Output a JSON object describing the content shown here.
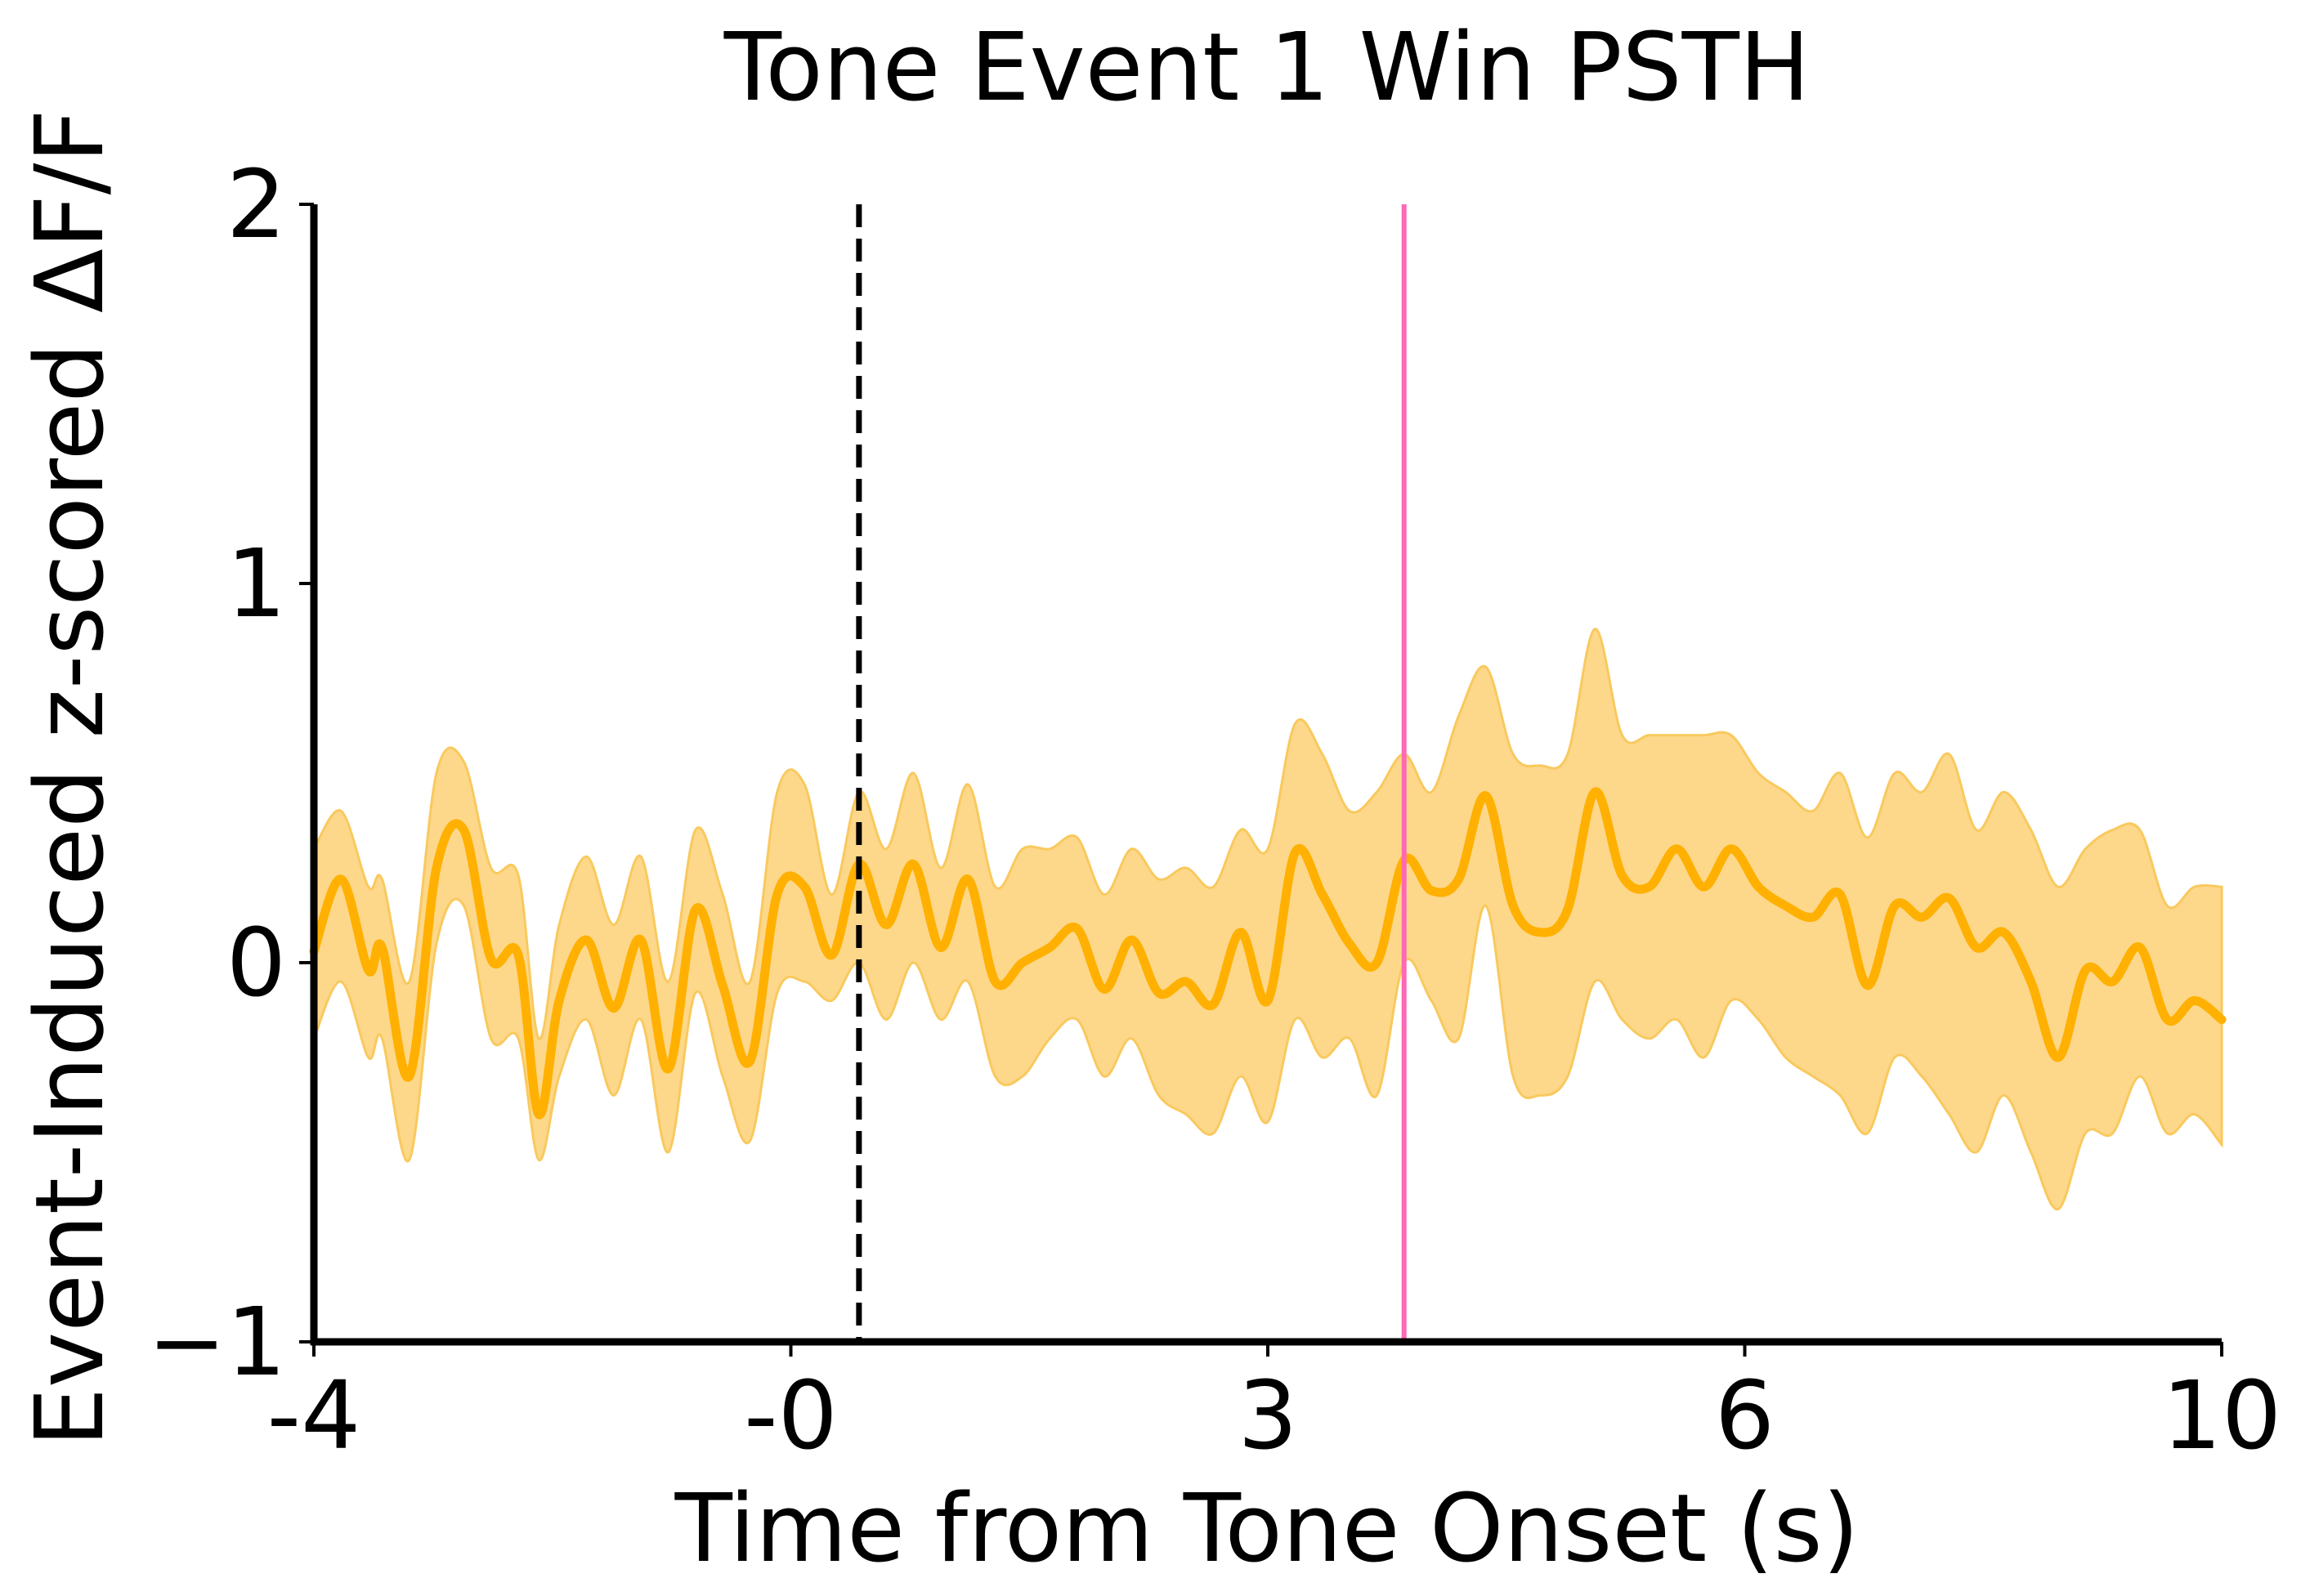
{
  "chart_data": {
    "type": "line",
    "title": "Tone Event 1 Win PSTH",
    "xlabel": "Time from Tone Onset (s)",
    "ylabel": "Event-Induced z-scored ΔF/F",
    "xlim": [
      -4,
      10
    ],
    "ylim": [
      -1,
      2
    ],
    "x_ticks": [
      {
        "value": -4,
        "label": "-4"
      },
      {
        "value": -0.5,
        "label": "-0"
      },
      {
        "value": 3,
        "label": "3"
      },
      {
        "value": 6.5,
        "label": "6"
      },
      {
        "value": 10,
        "label": "10"
      }
    ],
    "y_ticks": [
      {
        "value": -1,
        "label": "−1"
      },
      {
        "value": 0,
        "label": "0"
      },
      {
        "value": 1,
        "label": "1"
      },
      {
        "value": 2,
        "label": "2"
      }
    ],
    "grid": false,
    "vlines": [
      {
        "x": 0,
        "style": "dashed",
        "color": "#000000"
      },
      {
        "x": 4,
        "style": "solid",
        "color": "#ff69b4"
      }
    ],
    "colors": {
      "mean_line": "#ffb000",
      "sem_band": "#fdd88b",
      "sem_band_edge": "#f9c95e",
      "axis": "#000000"
    },
    "series": [
      {
        "x": [
          -4.0,
          -3.8,
          -3.6,
          -3.5,
          -3.3,
          -3.1,
          -2.9,
          -2.7,
          -2.5,
          -2.35,
          -2.2,
          -2.0,
          -1.8,
          -1.6,
          -1.4,
          -1.2,
          -1.0,
          -0.8,
          -0.6,
          -0.4,
          -0.2,
          0.0,
          0.2,
          0.4,
          0.6,
          0.8,
          1.0,
          1.2,
          1.4,
          1.6,
          1.8,
          2.0,
          2.2,
          2.4,
          2.6,
          2.8,
          3.0,
          3.2,
          3.4,
          3.6,
          3.8,
          4.0,
          4.2,
          4.4,
          4.6,
          4.8,
          5.0,
          5.2,
          5.4,
          5.6,
          5.8,
          6.0,
          6.2,
          6.4,
          6.6,
          6.8,
          7.0,
          7.2,
          7.4,
          7.6,
          7.8,
          8.0,
          8.2,
          8.4,
          8.6,
          8.8,
          9.0,
          9.2,
          9.4,
          9.6,
          9.8,
          10.0
        ],
        "mean": [
          0.03,
          0.22,
          -0.02,
          0.04,
          -0.3,
          0.25,
          0.35,
          0.01,
          0.02,
          -0.4,
          -0.1,
          0.06,
          -0.12,
          0.06,
          -0.28,
          0.14,
          -0.06,
          -0.26,
          0.18,
          0.2,
          0.02,
          0.26,
          0.1,
          0.26,
          0.04,
          0.22,
          -0.05,
          0.0,
          0.04,
          0.09,
          -0.07,
          0.06,
          -0.08,
          -0.05,
          -0.11,
          0.08,
          -0.1,
          0.29,
          0.18,
          0.05,
          0.0,
          0.27,
          0.19,
          0.22,
          0.44,
          0.15,
          0.08,
          0.14,
          0.45,
          0.23,
          0.2,
          0.3,
          0.2,
          0.3,
          0.2,
          0.15,
          0.12,
          0.18,
          -0.06,
          0.15,
          0.12,
          0.17,
          0.04,
          0.08,
          -0.05,
          -0.25,
          -0.02,
          -0.05,
          0.04,
          -0.15,
          -0.1,
          -0.15
        ],
        "lower": [
          -0.2,
          -0.05,
          -0.25,
          -0.2,
          -0.52,
          0.05,
          0.15,
          -0.2,
          -0.2,
          -0.52,
          -0.3,
          -0.15,
          -0.35,
          -0.15,
          -0.5,
          -0.08,
          -0.3,
          -0.47,
          -0.08,
          -0.05,
          -0.1,
          0.0,
          -0.15,
          0.0,
          -0.15,
          -0.05,
          -0.3,
          -0.3,
          -0.2,
          -0.15,
          -0.3,
          -0.2,
          -0.35,
          -0.4,
          -0.45,
          -0.3,
          -0.42,
          -0.15,
          -0.25,
          -0.2,
          -0.35,
          0.0,
          -0.1,
          -0.2,
          0.15,
          -0.3,
          -0.35,
          -0.3,
          -0.05,
          -0.15,
          -0.2,
          -0.15,
          -0.25,
          -0.1,
          -0.15,
          -0.25,
          -0.3,
          -0.35,
          -0.45,
          -0.25,
          -0.3,
          -0.4,
          -0.5,
          -0.35,
          -0.5,
          -0.65,
          -0.45,
          -0.45,
          -0.3,
          -0.45,
          -0.4,
          -0.48
        ],
        "upper": [
          0.3,
          0.4,
          0.2,
          0.22,
          -0.05,
          0.5,
          0.53,
          0.25,
          0.23,
          -0.2,
          0.1,
          0.28,
          0.1,
          0.28,
          -0.05,
          0.35,
          0.18,
          -0.05,
          0.45,
          0.47,
          0.18,
          0.45,
          0.3,
          0.5,
          0.25,
          0.47,
          0.2,
          0.3,
          0.3,
          0.33,
          0.18,
          0.3,
          0.22,
          0.25,
          0.2,
          0.35,
          0.3,
          0.63,
          0.55,
          0.4,
          0.45,
          0.55,
          0.45,
          0.65,
          0.78,
          0.55,
          0.52,
          0.55,
          0.88,
          0.6,
          0.6,
          0.6,
          0.6,
          0.6,
          0.5,
          0.45,
          0.4,
          0.5,
          0.33,
          0.5,
          0.45,
          0.55,
          0.35,
          0.45,
          0.35,
          0.2,
          0.3,
          0.35,
          0.35,
          0.15,
          0.2,
          0.2
        ]
      }
    ]
  }
}
